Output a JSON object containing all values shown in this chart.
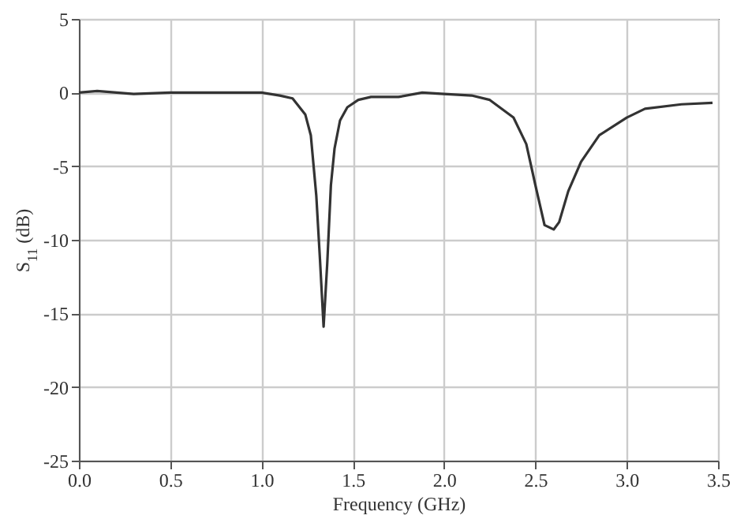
{
  "chart_data": {
    "type": "line",
    "xlabel": "Frequency (GHz)",
    "ylabel": "S$_{11}$ (dB)",
    "xlim": [
      0,
      3.5
    ],
    "ylim": [
      -25,
      5
    ],
    "xticks": [
      {
        "value": 0,
        "label": "0.0"
      },
      0.5,
      {
        "value": 1,
        "label": "1.0"
      },
      1.5,
      {
        "value": 2,
        "label": "2.0"
      },
      2.5,
      {
        "value": 3,
        "label": "3.0"
      },
      3.5
    ],
    "yticks": [
      -25,
      -20,
      -15,
      -10,
      -5,
      0,
      5
    ],
    "grid": true,
    "series": [
      {
        "color": "#333333",
        "x": [
          0,
          0.1,
          0.3,
          0.5,
          0.7,
          0.95,
          1.0,
          1.1,
          1.17,
          1.24,
          1.27,
          1.3,
          1.32,
          1.34,
          1.36,
          1.38,
          1.4,
          1.43,
          1.47,
          1.53,
          1.6,
          1.75,
          1.88,
          2.0,
          2.15,
          2.25,
          2.38,
          2.45,
          2.5,
          2.55,
          2.6,
          2.63,
          2.68,
          2.75,
          2.85,
          3.0,
          3.1,
          3.3,
          3.47
        ],
        "values": [
          0,
          0.1,
          -0.1,
          0,
          0,
          0,
          0,
          -0.2,
          -0.4,
          -1.5,
          -2.9,
          -7,
          -11.3,
          -15.9,
          -11.6,
          -6.3,
          -3.8,
          -1.9,
          -1,
          -0.5,
          -0.3,
          -0.3,
          0,
          -0.1,
          -0.2,
          -0.5,
          -1.7,
          -3.5,
          -6.3,
          -9,
          -9.3,
          -8.8,
          -6.7,
          -4.7,
          -2.9,
          -1.7,
          -1.1,
          -0.8,
          -0.7
        ]
      }
    ]
  }
}
